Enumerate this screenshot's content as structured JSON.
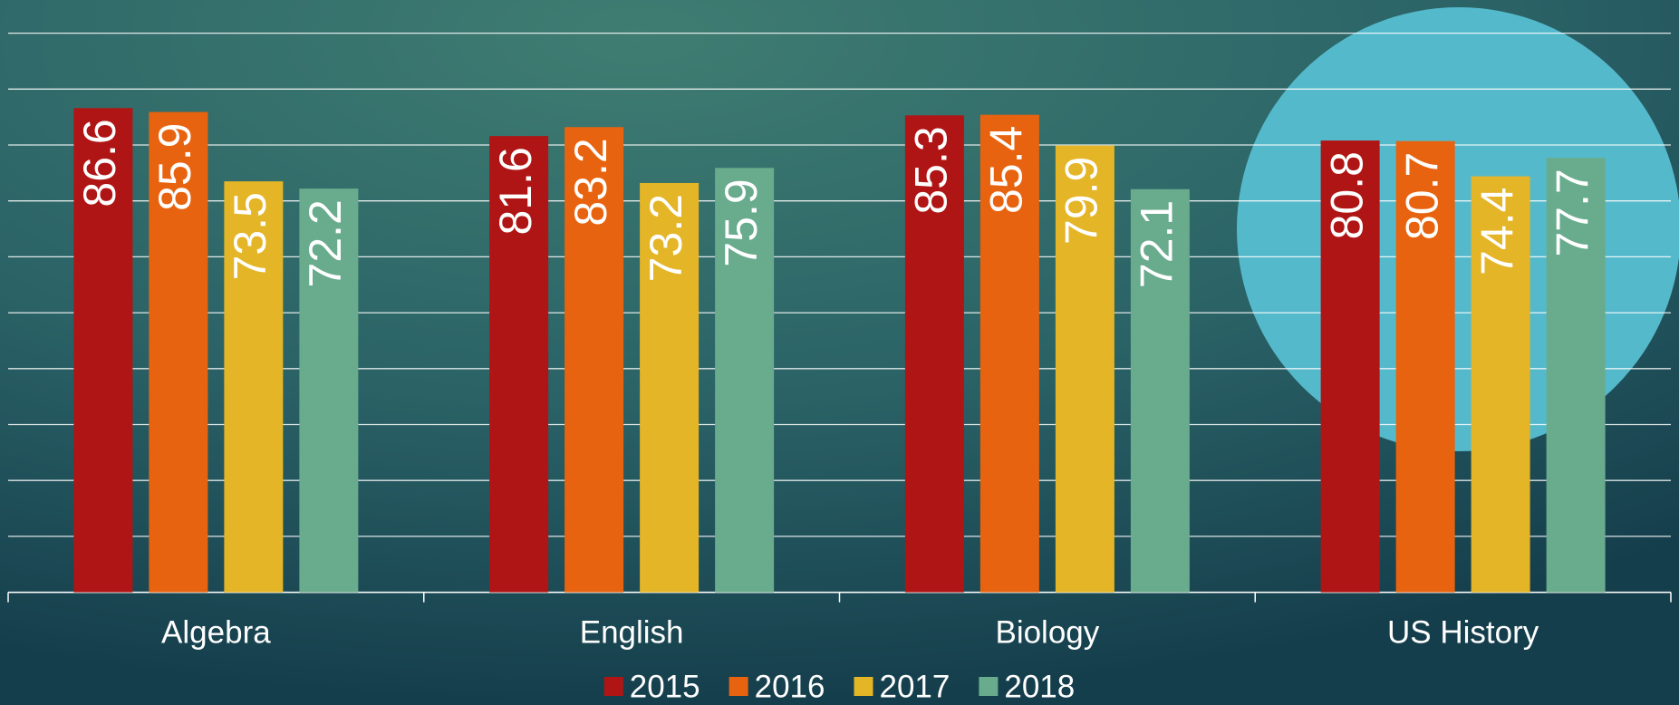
{
  "chart_data": {
    "type": "bar",
    "categories": [
      "Algebra",
      "English",
      "Biology",
      "US History"
    ],
    "series": [
      {
        "name": "2015",
        "color": "#b01515",
        "values": [
          86.6,
          81.6,
          85.3,
          80.8
        ]
      },
      {
        "name": "2016",
        "color": "#e8630f",
        "values": [
          85.9,
          83.2,
          85.4,
          80.7
        ]
      },
      {
        "name": "2017",
        "color": "#e4b526",
        "values": [
          73.5,
          73.2,
          79.9,
          74.4
        ]
      },
      {
        "name": "2018",
        "color": "#69ab8d",
        "values": [
          72.2,
          75.9,
          72.1,
          77.7
        ]
      }
    ],
    "ylim": [
      0,
      100
    ],
    "yticks": [
      0,
      10,
      20,
      30,
      40,
      50,
      60,
      70,
      80,
      90,
      100
    ],
    "grid": true,
    "legend": "bottom"
  }
}
